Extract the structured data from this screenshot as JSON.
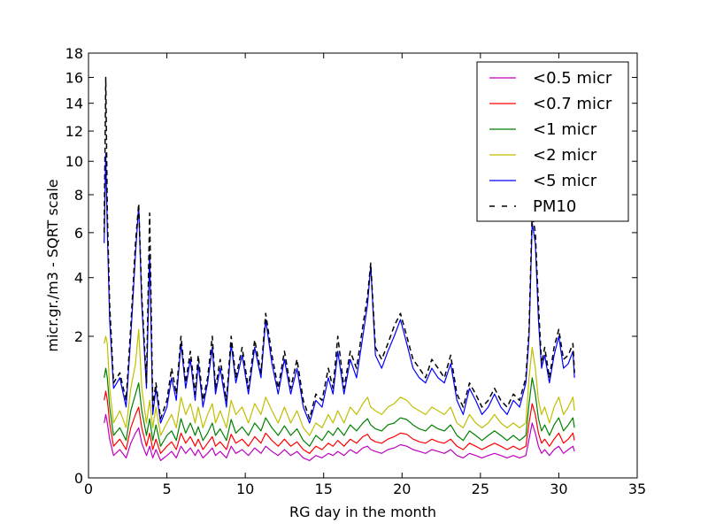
{
  "chart_data": {
    "type": "line",
    "title": "",
    "xlabel": "RG day in the month",
    "ylabel": "micr.gr./m3 - SQRT scale",
    "xlim": [
      0,
      35
    ],
    "ylim": [
      0,
      18
    ],
    "yscale": "sqrt",
    "x_ticks": [
      "0",
      "5",
      "10",
      "15",
      "20",
      "25",
      "30",
      "35"
    ],
    "x_tick_values": [
      0,
      5,
      10,
      15,
      20,
      25,
      30,
      35
    ],
    "y_ticks": [
      "0",
      "2",
      "4",
      "6",
      "8",
      "10",
      "12",
      "14",
      "16",
      "18"
    ],
    "y_tick_values": [
      0,
      2,
      4,
      6,
      8,
      10,
      12,
      14,
      16,
      18
    ],
    "grid": false,
    "legend_position": "top-right",
    "x": [
      1.0,
      1.1,
      1.2,
      1.35,
      1.6,
      2.0,
      2.4,
      2.7,
      3.0,
      3.2,
      3.4,
      3.7,
      3.9,
      4.1,
      4.3,
      4.6,
      5.0,
      5.3,
      5.6,
      5.9,
      6.2,
      6.5,
      6.8,
      7.0,
      7.3,
      7.6,
      7.9,
      8.1,
      8.4,
      8.8,
      9.1,
      9.4,
      9.8,
      10.2,
      10.6,
      11.0,
      11.3,
      11.7,
      12.1,
      12.5,
      12.9,
      13.3,
      13.7,
      14.1,
      14.5,
      14.9,
      15.3,
      15.6,
      15.9,
      16.3,
      16.7,
      17.1,
      17.5,
      17.8,
      18.0,
      18.3,
      18.7,
      19.1,
      19.5,
      19.9,
      20.3,
      20.7,
      21.1,
      21.5,
      21.9,
      22.3,
      22.7,
      23.1,
      23.5,
      23.9,
      24.3,
      24.7,
      25.1,
      25.5,
      25.9,
      26.3,
      26.7,
      27.1,
      27.5,
      27.9,
      28.1,
      28.3,
      28.5,
      28.7,
      28.9,
      29.1,
      29.4,
      29.7,
      30.0,
      30.3,
      30.6,
      30.9,
      31.0
    ],
    "series": [
      {
        "name": "<0.5 micr",
        "color": "#bf00bf",
        "dash": "solid",
        "values": [
          0.3,
          0.4,
          0.3,
          0.15,
          0.05,
          0.08,
          0.04,
          0.12,
          0.2,
          0.25,
          0.12,
          0.05,
          0.1,
          0.04,
          0.08,
          0.03,
          0.05,
          0.07,
          0.04,
          0.1,
          0.06,
          0.09,
          0.05,
          0.08,
          0.04,
          0.06,
          0.09,
          0.05,
          0.07,
          0.04,
          0.1,
          0.06,
          0.08,
          0.05,
          0.09,
          0.06,
          0.1,
          0.07,
          0.05,
          0.08,
          0.05,
          0.07,
          0.04,
          0.03,
          0.05,
          0.04,
          0.06,
          0.05,
          0.07,
          0.05,
          0.08,
          0.06,
          0.09,
          0.1,
          0.08,
          0.07,
          0.06,
          0.08,
          0.09,
          0.11,
          0.1,
          0.08,
          0.07,
          0.06,
          0.08,
          0.07,
          0.06,
          0.08,
          0.05,
          0.04,
          0.06,
          0.05,
          0.04,
          0.05,
          0.06,
          0.05,
          0.04,
          0.05,
          0.04,
          0.05,
          0.15,
          0.3,
          0.2,
          0.1,
          0.06,
          0.08,
          0.05,
          0.08,
          0.1,
          0.06,
          0.08,
          0.1,
          0.07
        ]
      },
      {
        "name": "<0.7 micr",
        "color": "#ff0000",
        "dash": "solid",
        "values": [
          0.6,
          0.75,
          0.6,
          0.3,
          0.1,
          0.15,
          0.08,
          0.25,
          0.4,
          0.5,
          0.25,
          0.1,
          0.2,
          0.08,
          0.15,
          0.06,
          0.1,
          0.13,
          0.08,
          0.2,
          0.12,
          0.17,
          0.1,
          0.15,
          0.08,
          0.12,
          0.17,
          0.1,
          0.13,
          0.08,
          0.19,
          0.12,
          0.15,
          0.1,
          0.17,
          0.12,
          0.2,
          0.14,
          0.1,
          0.15,
          0.1,
          0.13,
          0.08,
          0.06,
          0.1,
          0.08,
          0.12,
          0.1,
          0.14,
          0.1,
          0.15,
          0.12,
          0.17,
          0.19,
          0.15,
          0.13,
          0.12,
          0.15,
          0.17,
          0.2,
          0.19,
          0.15,
          0.13,
          0.12,
          0.15,
          0.13,
          0.12,
          0.15,
          0.1,
          0.08,
          0.12,
          0.1,
          0.08,
          0.1,
          0.12,
          0.1,
          0.08,
          0.1,
          0.08,
          0.1,
          0.3,
          0.55,
          0.4,
          0.2,
          0.12,
          0.15,
          0.1,
          0.15,
          0.2,
          0.12,
          0.15,
          0.2,
          0.14
        ]
      },
      {
        "name": "<1 micr",
        "color": "#008000",
        "dash": "solid",
        "values": [
          1.0,
          1.2,
          1.0,
          0.5,
          0.18,
          0.25,
          0.14,
          0.45,
          0.7,
          0.9,
          0.45,
          0.18,
          0.35,
          0.14,
          0.28,
          0.1,
          0.18,
          0.22,
          0.14,
          0.35,
          0.2,
          0.3,
          0.18,
          0.26,
          0.14,
          0.2,
          0.3,
          0.18,
          0.24,
          0.14,
          0.34,
          0.2,
          0.26,
          0.18,
          0.3,
          0.22,
          0.36,
          0.25,
          0.18,
          0.27,
          0.18,
          0.24,
          0.14,
          0.1,
          0.18,
          0.14,
          0.22,
          0.18,
          0.25,
          0.18,
          0.28,
          0.22,
          0.3,
          0.35,
          0.28,
          0.24,
          0.22,
          0.28,
          0.3,
          0.36,
          0.34,
          0.28,
          0.24,
          0.22,
          0.28,
          0.24,
          0.22,
          0.28,
          0.18,
          0.14,
          0.22,
          0.18,
          0.14,
          0.18,
          0.22,
          0.18,
          0.14,
          0.18,
          0.14,
          0.18,
          0.55,
          1.0,
          0.7,
          0.35,
          0.22,
          0.28,
          0.18,
          0.28,
          0.36,
          0.22,
          0.28,
          0.36,
          0.25
        ]
      },
      {
        "name": "<2 micr",
        "color": "#bfbf00",
        "dash": "solid",
        "values": [
          1.8,
          2.0,
          1.8,
          0.8,
          0.3,
          0.45,
          0.25,
          0.8,
          1.3,
          2.2,
          0.8,
          0.3,
          0.6,
          0.25,
          0.5,
          0.18,
          0.3,
          0.4,
          0.25,
          0.65,
          0.4,
          0.55,
          0.3,
          0.5,
          0.25,
          0.4,
          0.55,
          0.3,
          0.45,
          0.25,
          0.6,
          0.4,
          0.5,
          0.3,
          0.55,
          0.4,
          0.65,
          0.45,
          0.3,
          0.5,
          0.3,
          0.45,
          0.25,
          0.18,
          0.3,
          0.25,
          0.4,
          0.3,
          0.45,
          0.3,
          0.5,
          0.4,
          0.55,
          0.65,
          0.5,
          0.45,
          0.4,
          0.5,
          0.55,
          0.65,
          0.6,
          0.5,
          0.45,
          0.4,
          0.5,
          0.45,
          0.4,
          0.5,
          0.3,
          0.25,
          0.4,
          0.3,
          0.25,
          0.3,
          0.4,
          0.3,
          0.25,
          0.3,
          0.25,
          0.3,
          1.0,
          1.7,
          1.2,
          0.6,
          0.4,
          0.5,
          0.3,
          0.5,
          0.65,
          0.4,
          0.5,
          0.65,
          0.45
        ]
      },
      {
        "name": "<5 micr",
        "color": "#0000ff",
        "dash": "solid",
        "values": [
          5.5,
          10.5,
          6.0,
          2.5,
          0.8,
          1.0,
          0.5,
          2.0,
          5.0,
          7.4,
          3.0,
          0.8,
          5.0,
          0.4,
          0.8,
          0.3,
          0.5,
          1.0,
          0.6,
          1.8,
          0.8,
          1.4,
          0.6,
          1.3,
          0.5,
          0.9,
          1.7,
          0.7,
          1.2,
          0.5,
          1.8,
          0.9,
          1.5,
          0.7,
          1.7,
          1.0,
          2.5,
          1.3,
          0.7,
          1.4,
          0.7,
          1.2,
          0.5,
          0.3,
          0.6,
          0.5,
          1.0,
          0.7,
          1.6,
          0.7,
          1.4,
          1.0,
          2.0,
          3.0,
          4.5,
          1.5,
          1.2,
          1.6,
          2.0,
          2.5,
          1.8,
          1.2,
          1.0,
          0.9,
          1.2,
          1.0,
          0.9,
          1.3,
          0.6,
          0.4,
          0.8,
          0.6,
          0.4,
          0.5,
          0.7,
          0.5,
          0.4,
          0.6,
          0.5,
          0.9,
          2.0,
          6.5,
          5.5,
          2.5,
          1.2,
          1.5,
          0.9,
          1.5,
          2.0,
          1.2,
          1.3,
          1.6,
          1.0
        ]
      },
      {
        "name": "PM10",
        "color": "#000000",
        "dash": "dashed",
        "values": [
          6.0,
          16.0,
          7.0,
          3.0,
          0.9,
          1.1,
          0.6,
          2.3,
          5.5,
          7.5,
          3.3,
          0.9,
          7.0,
          0.5,
          0.9,
          0.35,
          0.6,
          1.2,
          0.7,
          2.0,
          0.9,
          1.6,
          0.7,
          1.5,
          0.6,
          1.0,
          2.0,
          0.8,
          1.4,
          0.6,
          2.0,
          1.0,
          1.7,
          0.8,
          1.9,
          1.1,
          2.7,
          1.5,
          0.8,
          1.6,
          0.8,
          1.4,
          0.6,
          0.35,
          0.7,
          0.6,
          1.2,
          0.8,
          2.0,
          0.8,
          1.6,
          1.2,
          2.3,
          3.3,
          4.6,
          1.7,
          1.4,
          1.8,
          2.3,
          2.7,
          2.0,
          1.4,
          1.2,
          1.0,
          1.4,
          1.2,
          1.0,
          1.5,
          0.7,
          0.5,
          0.9,
          0.7,
          0.5,
          0.6,
          0.8,
          0.6,
          0.5,
          0.7,
          0.6,
          1.0,
          2.2,
          7.0,
          6.0,
          3.0,
          1.3,
          1.7,
          1.0,
          1.7,
          2.2,
          1.4,
          1.5,
          1.8,
          1.1
        ]
      }
    ]
  }
}
